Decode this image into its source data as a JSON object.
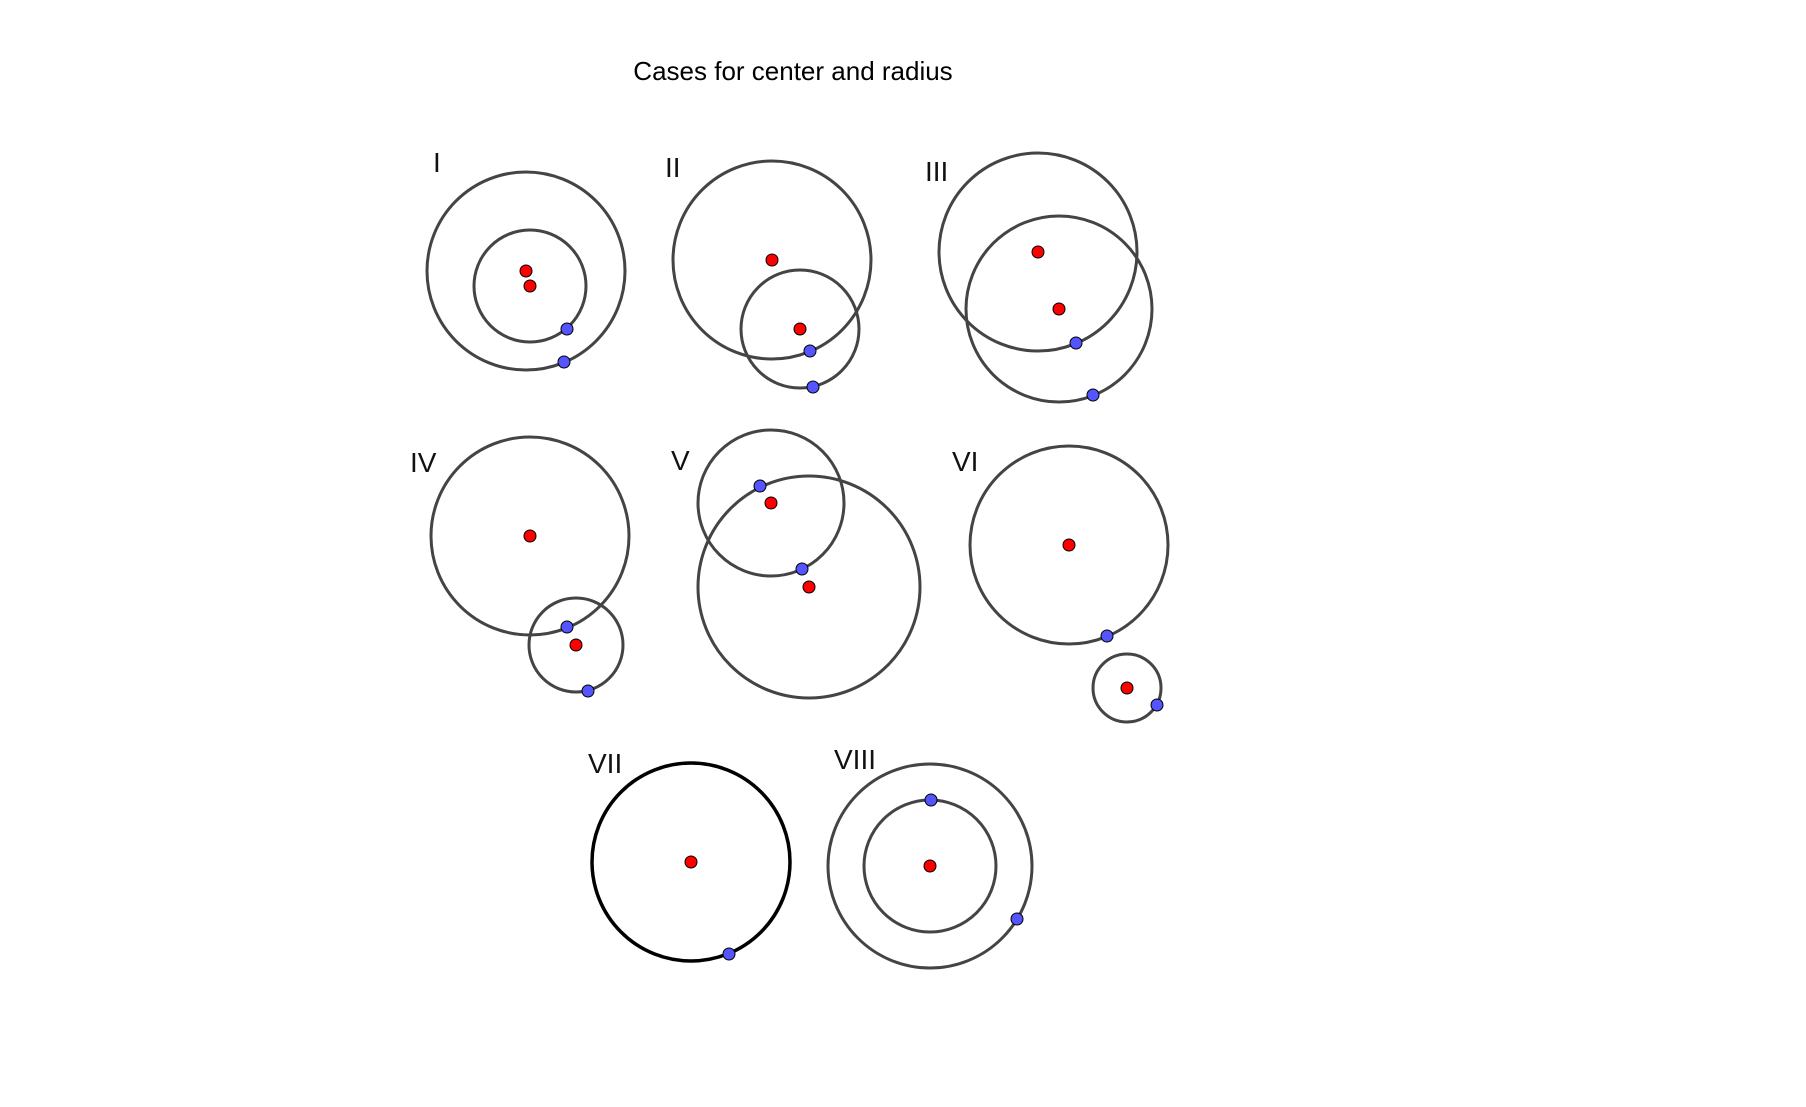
{
  "title": "Cases for center and radius",
  "colors": {
    "circle": "#444444",
    "circle_bold": "#000000",
    "center_point": "#ff0000",
    "radius_point": "#5555ff",
    "point_stroke": "#000000"
  },
  "cases": [
    {
      "label": "I"
    },
    {
      "label": "II"
    },
    {
      "label": "III"
    },
    {
      "label": "IV"
    },
    {
      "label": "V"
    },
    {
      "label": "VI"
    },
    {
      "label": "VII"
    },
    {
      "label": "VIII"
    }
  ]
}
